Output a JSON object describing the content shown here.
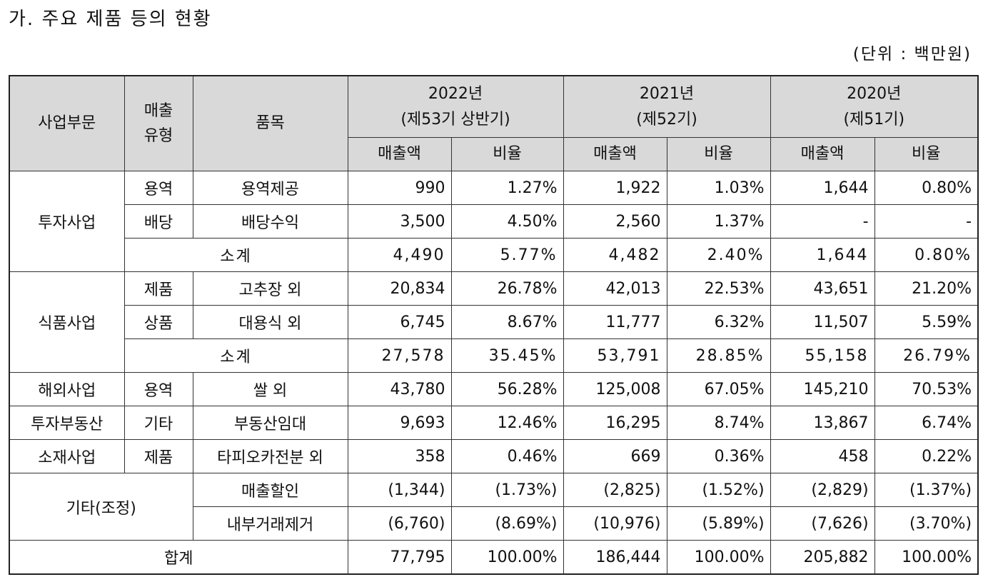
{
  "title": "가. 주요 제품 등의 현황",
  "unit": "(단위 : 백만원)",
  "header": {
    "segment": "사업부문",
    "sales_type": "매출 유형",
    "item": "품목",
    "periods": [
      {
        "year": "2022년",
        "term": "(제53기 상반기)"
      },
      {
        "year": "2021년",
        "term": "(제52기)"
      },
      {
        "year": "2020년",
        "term": "(제51기)"
      }
    ],
    "amount": "매출액",
    "ratio": "비율"
  },
  "rows": {
    "invest_service": {
      "segment": "투자사업",
      "type": "용역",
      "item": "용역제공",
      "v": [
        "990",
        "1.27%",
        "1,922",
        "1.03%",
        "1,644",
        "0.80%"
      ]
    },
    "invest_dividend": {
      "type": "배당",
      "item": "배당수익",
      "v": [
        "3,500",
        "4.50%",
        "2,560",
        "1.37%",
        "-",
        "-"
      ]
    },
    "invest_subtotal": {
      "item": "소계",
      "v": [
        "4,490",
        "5.77%",
        "4,482",
        "2.40%",
        "1,644",
        "0.80%"
      ]
    },
    "food_product": {
      "segment": "식품사업",
      "type": "제품",
      "item": "고추장 외",
      "v": [
        "20,834",
        "26.78%",
        "42,013",
        "22.53%",
        "43,651",
        "21.20%"
      ]
    },
    "food_goods": {
      "type": "상품",
      "item": "대용식 외",
      "v": [
        "6,745",
        "8.67%",
        "11,777",
        "6.32%",
        "11,507",
        "5.59%"
      ]
    },
    "food_subtotal": {
      "item": "소계",
      "v": [
        "27,578",
        "35.45%",
        "53,791",
        "28.85%",
        "55,158",
        "26.79%"
      ]
    },
    "overseas": {
      "segment": "해외사업",
      "type": "용역",
      "item": "쌀 외",
      "v": [
        "43,780",
        "56.28%",
        "125,008",
        "67.05%",
        "145,210",
        "70.53%"
      ]
    },
    "realestate": {
      "segment": "투자부동산",
      "type": "기타",
      "item": "부동산임대",
      "v": [
        "9,693",
        "12.46%",
        "16,295",
        "8.74%",
        "13,867",
        "6.74%"
      ]
    },
    "material": {
      "segment": "소재사업",
      "type": "제품",
      "item": "타피오카전분 외",
      "v": [
        "358",
        "0.46%",
        "669",
        "0.36%",
        "458",
        "0.22%"
      ]
    },
    "adj_discount": {
      "segment": "기타(조정)",
      "item": "매출할인",
      "v": [
        "(1,344)",
        "(1.73%)",
        "(2,825)",
        "(1.52%)",
        "(2,829)",
        "(1.37%)"
      ]
    },
    "adj_internal": {
      "item": "내부거래제거",
      "v": [
        "(6,760)",
        "(8.69%)",
        "(10,976)",
        "(5.89%)",
        "(7,626)",
        "(3.70%)"
      ]
    },
    "total": {
      "item": "합계",
      "v": [
        "77,795",
        "100.00%",
        "186,444",
        "100.00%",
        "205,882",
        "100.00%"
      ]
    }
  }
}
